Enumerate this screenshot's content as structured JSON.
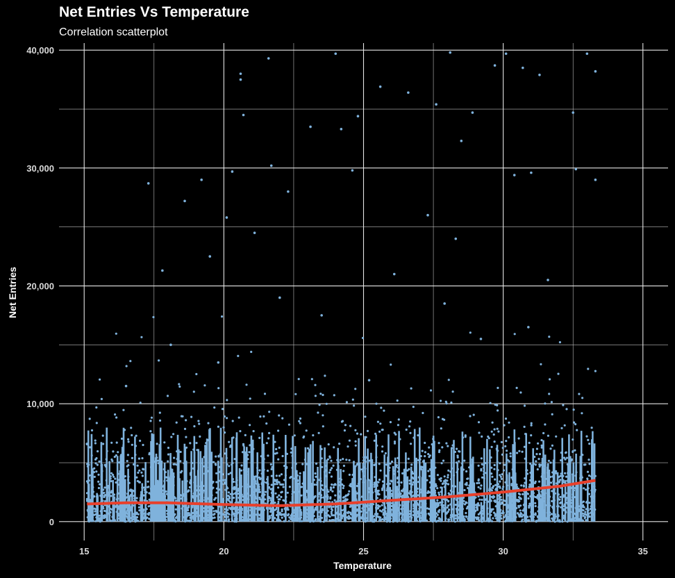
{
  "chart_data": {
    "type": "scatter",
    "title": "Net Entries Vs Temperature",
    "subtitle": "Correlation scatterplot",
    "xlabel": "Temperature",
    "ylabel": "Net Entries",
    "xlim": [
      14.1,
      35.9
    ],
    "ylim": [
      -1600,
      40600
    ],
    "x_ticks": [
      15,
      20,
      25,
      30,
      35
    ],
    "y_ticks": [
      0,
      10000,
      20000,
      30000,
      40000
    ],
    "x_tick_labels": [
      "15",
      "20",
      "25",
      "30",
      "35"
    ],
    "y_tick_labels": [
      "0",
      "10,000",
      "20,000",
      "30,000",
      "40,000"
    ],
    "x_range": [
      15.1,
      33.3
    ],
    "grid": true,
    "point_color": "#7fb2dc",
    "trend_color": "#e8402c",
    "background_color": "#000000",
    "trend": {
      "x": [
        15.1,
        16.5,
        18.0,
        20.0,
        22.0,
        24.0,
        26.0,
        28.0,
        30.0,
        32.0,
        33.3
      ],
      "y": [
        1500,
        1600,
        1600,
        1450,
        1350,
        1500,
        1800,
        2100,
        2500,
        3000,
        3500
      ]
    },
    "points": {
      "x": [
        15.1,
        16.5,
        17.8,
        17.3,
        18.1,
        18.6,
        19.2,
        19.5,
        20.1,
        20.3,
        20.6,
        20.6,
        20.7,
        21.1,
        21.6,
        21.7,
        22.3,
        23.1,
        24.0,
        24.2,
        24.6,
        24.8,
        25.6,
        26.6,
        27.3,
        27.6,
        28.1,
        28.5,
        28.9,
        29.7,
        30.1,
        30.4,
        30.7,
        31.0,
        31.3,
        32.5,
        32.6,
        33.0,
        33.3,
        33.3,
        22.0,
        23.5,
        26.1,
        27.9,
        29.2,
        31.6,
        19.8,
        25.2,
        28.3,
        30.9
      ],
      "y": [
        6600,
        11500,
        21300,
        28700,
        15000,
        27200,
        29000,
        22500,
        25800,
        29700,
        38000,
        37500,
        34500,
        24500,
        39300,
        30200,
        28000,
        33500,
        39700,
        33300,
        29800,
        34400,
        36900,
        36400,
        26000,
        35400,
        39800,
        32300,
        34700,
        38700,
        39700,
        29400,
        38500,
        29600,
        37900,
        34700,
        29900,
        39700,
        38200,
        29000,
        19000,
        17500,
        21000,
        18500,
        15500,
        20500,
        13500,
        12000,
        24000,
        16500
      ]
    }
  }
}
